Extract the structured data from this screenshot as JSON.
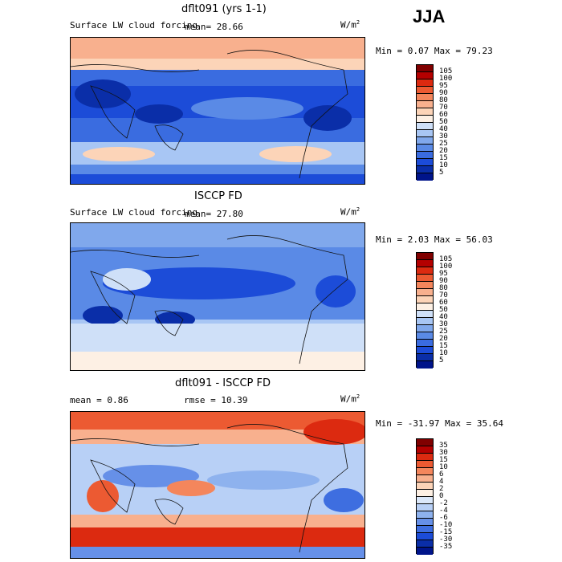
{
  "season": "JJA",
  "panels": [
    {
      "title": "dflt091 (yrs 1-1)",
      "variable": "Surface LW cloud forcing",
      "stat_left": "mean=  28.66",
      "units_base": "W/m",
      "units_exp": "2",
      "minmax": "Min =   0.07 Max =  79.23",
      "colorbar": {
        "levels": [
          "105",
          "100",
          "95",
          "90",
          "80",
          "70",
          "60",
          "50",
          "40",
          "30",
          "25",
          "20",
          "15",
          "10",
          "5"
        ],
        "colors": [
          "#800000",
          "#b40000",
          "#dc2a10",
          "#ec5a32",
          "#f4865c",
          "#f8b08e",
          "#fcd4b8",
          "#fdf0e4",
          "#cfe0f8",
          "#a8c6f4",
          "#80a8ec",
          "#5a8ae6",
          "#3a6ce0",
          "#1c4cd8",
          "#0a2ea8",
          "#00148a"
        ]
      }
    },
    {
      "title": "ISCCP FD",
      "variable": "Surface LW cloud forcing",
      "stat_left": "mean=  27.80",
      "units_base": "W/m",
      "units_exp": "2",
      "minmax": "Min =   2.03 Max =  56.03",
      "colorbar": {
        "levels": [
          "105",
          "100",
          "95",
          "90",
          "80",
          "70",
          "60",
          "50",
          "40",
          "30",
          "25",
          "20",
          "15",
          "10",
          "5"
        ],
        "colors": [
          "#800000",
          "#b40000",
          "#dc2a10",
          "#ec5a32",
          "#f4865c",
          "#f8b08e",
          "#fcd4b8",
          "#fdf0e4",
          "#cfe0f8",
          "#a8c6f4",
          "#80a8ec",
          "#5a8ae6",
          "#3a6ce0",
          "#1c4cd8",
          "#0a2ea8",
          "#00148a"
        ]
      }
    },
    {
      "title": "dflt091 - ISCCP FD",
      "stat_left": "mean =   0.86",
      "stat_mid": "rmse =  10.39",
      "units_base": "W/m",
      "units_exp": "2",
      "minmax": "Min = -31.97 Max =  35.64",
      "colorbar": {
        "levels": [
          "35",
          "30",
          "15",
          "10",
          "6",
          "4",
          "2",
          "0",
          "-2",
          "-4",
          "-6",
          "-10",
          "-15",
          "-30",
          "-35"
        ],
        "colors": [
          "#800000",
          "#b40000",
          "#dc2a10",
          "#ec5a32",
          "#f4865c",
          "#f8b08e",
          "#fcd4b8",
          "#fdf0e4",
          "#dbe8fa",
          "#b8d0f6",
          "#8eb2ee",
          "#6690e8",
          "#3e6ee0",
          "#1c4cd8",
          "#0a2ea8",
          "#00148a"
        ]
      }
    }
  ]
}
